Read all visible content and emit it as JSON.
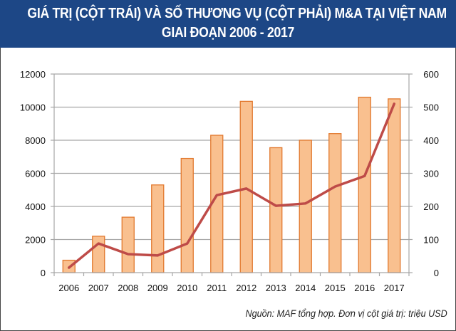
{
  "title": {
    "line1": "GIÁ TRỊ (CỘT TRÁI) VÀ SỐ THƯƠNG VỤ (CỘT PHẢI) M&A TẠI VIỆT NAM",
    "line2": "GIAI ĐOẠN 2006 - 2017"
  },
  "source_note": "Nguồn: MAF tổng hợp. Đơn vị cột giá trị: triệu USD",
  "colors": {
    "title_bg": "#1d4786",
    "bar_fill": "#f9c08f",
    "bar_stroke": "#e2792f",
    "line": "#be4b48",
    "grid": "#a6a6a6"
  },
  "chart_data": {
    "type": "bar+line",
    "title": "GIÁ TRỊ (CỘT TRÁI) VÀ SỐ THƯƠNG VỤ (CỘT PHẢI) M&A TẠI VIỆT NAM GIAI ĐOẠN 2006 - 2017",
    "categories": [
      "2006",
      "2007",
      "2008",
      "2009",
      "2010",
      "2011",
      "2012",
      "2013",
      "2014",
      "2015",
      "2016",
      "2017"
    ],
    "series": [
      {
        "name": "Giá trị (triệu USD)",
        "type": "bar",
        "axis": "left",
        "values": [
          750,
          2200,
          3350,
          5300,
          6900,
          8300,
          10350,
          7550,
          8000,
          8400,
          10600,
          10500
        ]
      },
      {
        "name": "Số thương vụ",
        "type": "line",
        "axis": "right",
        "values": [
          15,
          88,
          56,
          52,
          88,
          234,
          254,
          202,
          209,
          260,
          292,
          510
        ]
      }
    ],
    "left_axis": {
      "ylim": [
        0,
        12000
      ],
      "ticks": [
        "0",
        "2000",
        "4000",
        "6000",
        "8000",
        "10000",
        "12000"
      ]
    },
    "right_axis": {
      "ylim": [
        0,
        600
      ],
      "ticks": [
        "0",
        "100",
        "200",
        "300",
        "400",
        "500",
        "600"
      ]
    },
    "xlabel": "",
    "ylabel": "",
    "grid": true,
    "legend": "none"
  }
}
